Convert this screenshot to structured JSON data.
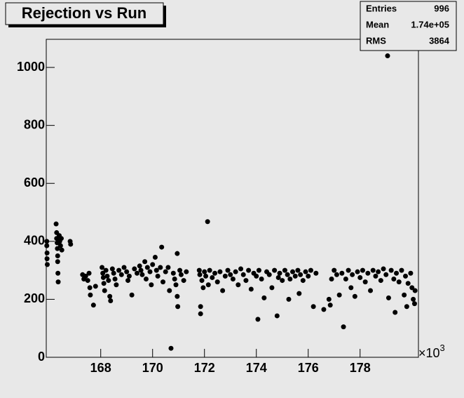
{
  "chart_data": {
    "type": "scatter",
    "title": "Rejection vs Run",
    "x_exponent_base": "×10",
    "x_exponent": 3,
    "xlim": [
      165.9,
      180.25
    ],
    "ylim": [
      0,
      1097
    ],
    "xticks": [
      168,
      170,
      172,
      174,
      176,
      178
    ],
    "yticks": [
      0,
      200,
      400,
      600,
      800,
      1000
    ],
    "color": "#000000",
    "stats": [
      {
        "label": "Entries",
        "value": 996
      },
      {
        "label": "Mean",
        "value": {
          "value": 174000,
          "label": "1.74e+05"
        }
      },
      {
        "label": "RMS",
        "value": 3864
      }
    ],
    "x": [
      165.92,
      165.92,
      165.93,
      165.93,
      165.94,
      166.28,
      166.3,
      166.3,
      166.32,
      166.33,
      166.34,
      166.34,
      166.35,
      166.36,
      166.4,
      166.42,
      166.45,
      166.48,
      166.5,
      166.82,
      166.84,
      167.3,
      167.35,
      167.42,
      167.5,
      167.55,
      167.58,
      167.6,
      167.72,
      167.8,
      168.05,
      168.08,
      168.1,
      168.12,
      168.15,
      168.2,
      168.25,
      168.3,
      168.35,
      168.38,
      168.45,
      168.5,
      168.55,
      168.6,
      168.7,
      168.8,
      168.9,
      169.0,
      169.05,
      169.1,
      169.2,
      169.3,
      169.4,
      169.5,
      169.55,
      169.6,
      169.7,
      169.75,
      169.8,
      169.9,
      169.95,
      170.0,
      170.1,
      170.15,
      170.2,
      170.3,
      170.35,
      170.4,
      170.5,
      170.6,
      170.65,
      170.71,
      170.8,
      170.85,
      170.9,
      170.95,
      170.95,
      170.97,
      171.05,
      171.1,
      171.2,
      171.3,
      171.8,
      171.82,
      171.85,
      171.85,
      171.9,
      171.95,
      172.0,
      172.05,
      172.12,
      172.15,
      172.2,
      172.3,
      172.4,
      172.5,
      172.6,
      172.7,
      172.8,
      172.9,
      173.0,
      173.1,
      173.2,
      173.3,
      173.4,
      173.5,
      173.6,
      173.7,
      173.8,
      173.9,
      174.0,
      174.06,
      174.1,
      174.2,
      174.3,
      174.4,
      174.5,
      174.6,
      174.7,
      174.8,
      174.85,
      174.9,
      175.0,
      175.1,
      175.2,
      175.25,
      175.3,
      175.4,
      175.5,
      175.6,
      175.65,
      175.7,
      175.8,
      175.9,
      176.0,
      176.1,
      176.2,
      176.3,
      176.6,
      176.8,
      176.85,
      176.9,
      177.0,
      177.1,
      177.2,
      177.3,
      177.36,
      177.45,
      177.55,
      177.65,
      177.7,
      177.8,
      177.9,
      178.0,
      178.1,
      178.2,
      178.3,
      178.4,
      178.5,
      178.6,
      178.7,
      178.8,
      178.9,
      179.0,
      179.06,
      179.1,
      179.2,
      179.3,
      179.35,
      179.4,
      179.5,
      179.6,
      179.7,
      179.75,
      179.8,
      179.85,
      179.95,
      180.0,
      180.05,
      180.1,
      180.12
    ],
    "values": [
      400,
      385,
      360,
      340,
      320,
      460,
      430,
      410,
      395,
      375,
      350,
      330,
      290,
      260,
      420,
      400,
      385,
      410,
      370,
      400,
      390,
      285,
      270,
      280,
      265,
      290,
      240,
      215,
      180,
      245,
      310,
      290,
      275,
      255,
      230,
      300,
      280,
      265,
      210,
      195,
      305,
      290,
      270,
      250,
      300,
      285,
      310,
      295,
      265,
      280,
      215,
      305,
      290,
      315,
      300,
      285,
      330,
      270,
      310,
      295,
      250,
      320,
      345,
      300,
      280,
      310,
      380,
      260,
      295,
      310,
      230,
      31,
      290,
      270,
      250,
      358,
      210,
      175,
      300,
      285,
      265,
      295,
      300,
      285,
      150,
      175,
      265,
      240,
      295,
      280,
      468,
      250,
      300,
      275,
      290,
      260,
      295,
      230,
      280,
      300,
      285,
      270,
      295,
      250,
      305,
      285,
      265,
      300,
      235,
      290,
      280,
      131,
      300,
      270,
      205,
      295,
      285,
      240,
      300,
      143,
      275,
      290,
      265,
      300,
      285,
      200,
      270,
      295,
      280,
      300,
      220,
      285,
      265,
      295,
      280,
      300,
      175,
      290,
      165,
      200,
      180,
      270,
      300,
      285,
      215,
      290,
      105,
      270,
      300,
      240,
      285,
      210,
      295,
      275,
      300,
      260,
      290,
      230,
      300,
      280,
      295,
      265,
      305,
      285,
      1040,
      205,
      300,
      270,
      155,
      290,
      260,
      300,
      215,
      280,
      175,
      255,
      290,
      240,
      200,
      185,
      230
    ]
  }
}
